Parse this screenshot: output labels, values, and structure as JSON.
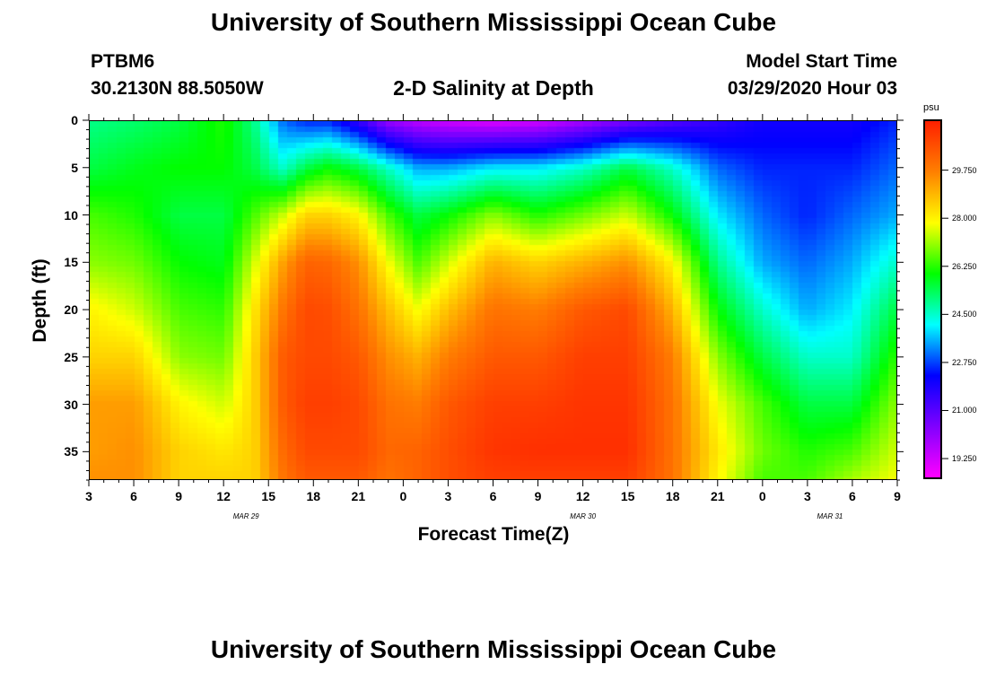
{
  "page": {
    "title_top": "University of Southern Mississippi Ocean Cube",
    "title_bottom": "University of Southern Mississippi Ocean Cube",
    "station_id": "PTBM6",
    "station_coords": "30.2130N 88.5050W",
    "model_start_label": "Model Start Time",
    "model_start_value": "03/29/2020 Hour 03"
  },
  "chart_data": {
    "type": "heatmap",
    "title": "2-D Salinity at Depth",
    "xlabel": "Forecast Time(Z)",
    "ylabel": "Depth (ft)",
    "x_tick_labels": [
      "3",
      "6",
      "9",
      "12",
      "15",
      "18",
      "21",
      "0",
      "3",
      "6",
      "9",
      "12",
      "15",
      "18",
      "21",
      "0",
      "3",
      "6",
      "9"
    ],
    "x_range_hours": [
      0,
      54
    ],
    "date_labels": [
      {
        "text": "MAR 29",
        "hour": 10.5
      },
      {
        "text": "MAR 30",
        "hour": 33
      },
      {
        "text": "MAR 31",
        "hour": 49.5
      }
    ],
    "y_tick_labels": [
      "0",
      "5",
      "10",
      "15",
      "20",
      "25",
      "30",
      "35"
    ],
    "y_range_ft": [
      0,
      38
    ],
    "colorbar": {
      "unit": "psu",
      "min": 18.5,
      "max": 31.6,
      "tick_labels": [
        "29.750",
        "28.000",
        "26.250",
        "24.500",
        "22.750",
        "21.000",
        "19.250"
      ],
      "tick_values": [
        29.75,
        28.0,
        26.25,
        24.5,
        22.75,
        21.0,
        19.25
      ],
      "colors": [
        "#ff00ff",
        "#8000ff",
        "#0000ff",
        "#00ffff",
        "#00ff00",
        "#ffff00",
        "#ff8000",
        "#ff2000"
      ]
    },
    "grid": false,
    "salinity_grid_psu": {
      "hours": [
        0,
        3,
        6,
        9,
        11,
        13,
        14.5,
        16,
        18,
        20,
        22,
        24,
        27,
        30,
        33,
        36,
        39,
        42,
        45,
        48,
        51,
        54
      ],
      "depths_ft": [
        0,
        5,
        10,
        15,
        20,
        25,
        30,
        35,
        38
      ],
      "values": [
        [
          25.0,
          25.5,
          26.5,
          27.0,
          28.0,
          28.5,
          29.3,
          29.3,
          29.5
        ],
        [
          25.2,
          25.8,
          26.2,
          26.8,
          27.5,
          28.5,
          29.3,
          29.5,
          29.5
        ],
        [
          25.5,
          26.0,
          25.5,
          26.0,
          26.5,
          27.0,
          28.0,
          28.5,
          28.5
        ],
        [
          26.2,
          26.0,
          25.5,
          25.8,
          26.3,
          26.8,
          27.5,
          28.2,
          28.5
        ],
        [
          25.0,
          25.5,
          26.5,
          27.5,
          28.2,
          28.5,
          28.5,
          28.5,
          28.5
        ],
        [
          23.0,
          24.5,
          27.5,
          29.3,
          30.0,
          30.5,
          30.5,
          30.2,
          30.0
        ],
        [
          22.5,
          25.5,
          28.5,
          30.3,
          30.8,
          30.8,
          31.0,
          30.8,
          30.5
        ],
        [
          22.5,
          26.0,
          28.5,
          30.2,
          30.7,
          30.8,
          31.0,
          30.8,
          30.5
        ],
        [
          21.5,
          25.5,
          28.0,
          29.5,
          30.0,
          30.5,
          30.8,
          30.8,
          30.5
        ],
        [
          20.0,
          24.5,
          26.5,
          27.8,
          28.8,
          29.5,
          30.0,
          30.2,
          30.0
        ],
        [
          19.5,
          23.5,
          25.5,
          26.5,
          27.8,
          29.0,
          29.8,
          30.3,
          30.3
        ],
        [
          19.2,
          23.5,
          26.0,
          27.5,
          28.8,
          29.8,
          30.5,
          30.7,
          30.7
        ],
        [
          19.0,
          24.0,
          27.0,
          29.0,
          30.0,
          30.5,
          31.0,
          31.2,
          31.0
        ],
        [
          19.2,
          24.0,
          26.2,
          28.5,
          29.8,
          30.5,
          31.0,
          31.3,
          31.0
        ],
        [
          19.8,
          24.5,
          26.8,
          29.0,
          30.5,
          31.0,
          31.2,
          31.3,
          31.0
        ],
        [
          20.5,
          25.5,
          27.5,
          29.5,
          30.8,
          31.0,
          31.2,
          31.3,
          31.0
        ],
        [
          21.0,
          24.5,
          26.0,
          28.0,
          29.0,
          29.8,
          30.0,
          30.0,
          30.0
        ],
        [
          21.5,
          23.0,
          24.0,
          25.0,
          26.0,
          27.0,
          27.8,
          28.2,
          28.0
        ],
        [
          22.0,
          22.5,
          23.0,
          23.5,
          24.5,
          25.5,
          26.5,
          26.8,
          26.5
        ],
        [
          22.0,
          22.5,
          22.5,
          23.0,
          23.5,
          24.5,
          25.5,
          26.2,
          26.5
        ],
        [
          22.0,
          22.5,
          23.0,
          23.5,
          24.0,
          24.5,
          25.5,
          26.5,
          27.2
        ],
        [
          22.5,
          23.0,
          23.5,
          24.5,
          25.5,
          26.3,
          27.0,
          27.5,
          27.8
        ]
      ]
    }
  }
}
